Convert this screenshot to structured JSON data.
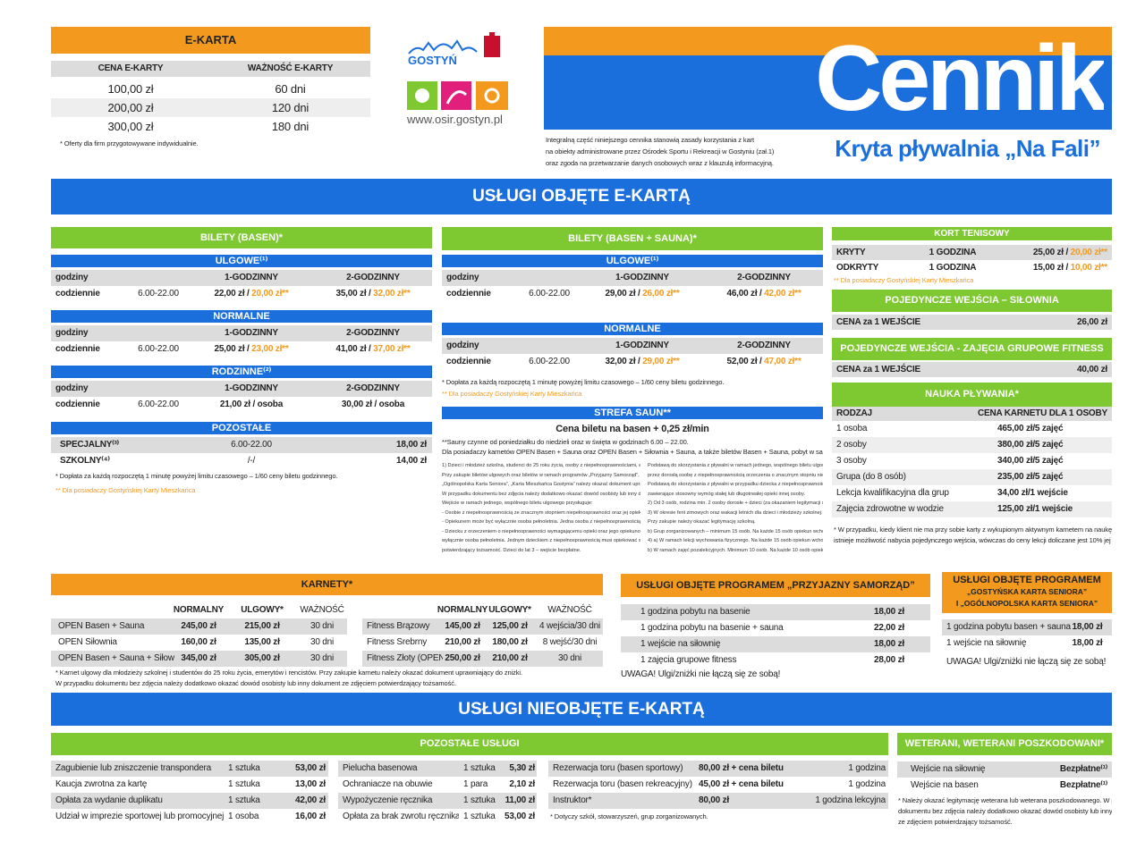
{
  "ekarta": {
    "title": "E-KARTA",
    "header": [
      "CENA E-KARTY",
      "WAŻNOŚĆ E-KARTY"
    ],
    "rows": [
      [
        "100,00 zł",
        "60 dni"
      ],
      [
        "200,00 zł",
        "120 dni"
      ],
      [
        "300,00 zł",
        "180 dni"
      ]
    ],
    "note": "* Oferty dla firm przygotowywane indywidualnie."
  },
  "logo": {
    "name": "GOSTYŃ",
    "url": "www.osir.gostyn.pl"
  },
  "header": {
    "title": "Cennik",
    "subtitle": "Kryta pływalnia „Na Fali”",
    "intro": [
      "Integralną część niniejszego cennika stanowią zasady korzystania z kart",
      "na obiekty administrowane przez Ośrodek Sportu i Rekreacji w Gostyniu (zał.1)",
      "oraz zgoda na przetwarzanie danych osobowych wraz z klauzulą informacyjną."
    ]
  },
  "section1": "USŁUGI OBJĘTE E-KARTĄ",
  "basen": {
    "title": "BILETY (BASEN)*",
    "groups": [
      {
        "title": "ULGOWE⁽¹⁾",
        "rows": [
          [
            "godziny",
            null,
            "1-GODZINNY",
            "2-GODZINNY"
          ],
          [
            "codziennie",
            "6.00-22.00",
            [
              "22,00 zł / ",
              "20,00 zł**"
            ],
            [
              "35,00 zł / ",
              "32,00 zł**"
            ]
          ]
        ]
      },
      {
        "title": "NORMALNE",
        "rows": [
          [
            "godziny",
            null,
            "1-GODZINNY",
            "2-GODZINNY"
          ],
          [
            "codziennie",
            "6.00-22.00",
            [
              "25,00 zł / ",
              "23,00 zł**"
            ],
            [
              "41,00 zł / ",
              "37,00 zł**"
            ]
          ]
        ]
      },
      {
        "title": "RODZINNE⁽²⁾",
        "rows": [
          [
            "godziny",
            null,
            "1-GODZINNY",
            "2-GODZINNY"
          ],
          [
            "codziennie",
            "6.00-22.00",
            "21,00 zł / osoba",
            "30,00 zł / osoba"
          ]
        ]
      },
      {
        "title": "POZOSTAŁE",
        "rows": [
          [
            "SPECJALNY⁽³⁾",
            null,
            "6.00-22.00",
            "18,00 zł"
          ],
          [
            "SZKOLNY⁽⁴⁾",
            null,
            "/-/",
            "14,00 zł"
          ]
        ]
      }
    ],
    "notes": [
      "* Dopłata za każdą rozpoczętą 1 minutę powyżej limitu czasowego – 1/60 ceny biletu godzinnego.",
      "** Dla posiadaczy Gostyńskiej Karty Mieszkańca"
    ]
  },
  "sauna": {
    "title": "BILETY (BASEN + SAUNA)*",
    "groups": [
      {
        "title": "ULGOWE⁽¹⁾",
        "rows": [
          [
            "godziny",
            null,
            "1-GODZINNY",
            "2-GODZINNY"
          ],
          [
            "codziennie",
            "6.00-22.00",
            [
              "29,00 zł / ",
              "26,00 zł**"
            ],
            [
              "46,00 zł / ",
              "42,00 zł**"
            ]
          ]
        ]
      },
      {
        "title": "NORMALNE",
        "rows": [
          [
            "godziny",
            null,
            "1-GODZINNY",
            "2-GODZINNY"
          ],
          [
            "codziennie",
            "6.00-22.00",
            [
              "32,00 zł / ",
              "29,00 zł**"
            ],
            [
              "52,00 zł / ",
              "47,00 zł**"
            ]
          ]
        ]
      }
    ],
    "notes": [
      "* Dopłata za każdą rozpoczętą 1 minutę powyżej limitu czasowego – 1/60 ceny biletu godzinnego.",
      "** Dla posiadaczy Gostyńskiej Karty Mieszkańca"
    ]
  },
  "strefa": {
    "title": "STREFA SAUN**",
    "price": "Cena biletu na basen + 0,25 zł/min",
    "notes": [
      "**Sauny czynne od poniedziałku do niedzieli oraz w święta w godzinach 6.00 – 22.00.",
      "Dla posiadaczy karnetów OPEN Basen + Sauna oraz OPEN Basen + Siłownia + Sauna, a także biletów Basen + Sauna, pobyt w saunach w cenie karnetu/biletu."
    ],
    "fine_left": [
      "1) Dzieci i młodzież szkolna, studenci do 25 roku życia, osoby z niepełnosprawnościami, emeryci i renciści.",
      "Przy zakupie biletów ulgowych oraz biletów w ramach programów „Przyjazny Samorząd”, „Gostyńska Karta Seniora”,",
      "„Ogólnopolska Karta Seniora”, „Karta Mieszkańca Gostynia” należy okazać dokument uprawniający do zniżki.",
      "W przypadku dokumentu bez zdjęcia należy dodatkowo okazać dowód osobisty lub inny dokument.",
      "Wejście w ramach jednego, wspólnego biletu ulgowego przysługuje:",
      "- Osobie z niepełnosprawnością ze znacznym stopniem niepełnosprawności oraz jej opiekunowi.",
      "- Opiekunem może być wyłącznie osoba pełnoletnia. Jedna osoba z niepełnosprawnością i jeden opiekun.",
      "- Dziecku z orzeczeniem o niepełnosprawności wymagającemu opieki oraz jego opiekunowi.",
      "wyłącznie osoba pełnoletnia. Jednym dzieckiem z niepełnosprawnością musi opiekować się jeden opiekun.",
      "potwierdzający tożsamość. Dzieci do lat 3 – wejście bezpłatne."
    ],
    "fine_right": [
      "Podstawą do skorzystania z pływalni w ramach jednego, wspólnego biletu ulgowego jest okazanie",
      "przez dorosłą osobę z niepełnosprawnością orzeczenia o znacznym stopniu niepełnosprawności.",
      "Podstawą do skorzystania z pływalni w przypadku dziecka z niepełnosprawnością jest orzeczenie",
      "zawierające stosowny wymóg stałej lub długotrwałej opieki innej osoby.",
      "2) Od 3 osób, rodzina min. 2 osoby dorosłe + dzieci (za okazaniem legitymacji szkolnej).",
      "3) W okresie ferii zimowych oraz wakacji letnich dla dzieci i młodzieży szkolnej.",
      "Przy zakupie należy okazać legitymację szkolną.",
      "b) Grup zorganizowanych – minimum 15 osób. Na każde 15 osób opiekun wchodzi gratis.",
      "4) a) W ramach lekcji wychowania fizycznego. Na każde 15 osób opiekun wchodzi gratis.",
      "b) W ramach zajęć pozalekcyjnych. Minimum 10 osób. Na każde 10 osób opiekun wchodzi gratis."
    ]
  },
  "kort": {
    "title": "KORT TENISOWY",
    "rows": [
      [
        "KRYTY",
        "1 GODZINA",
        [
          "25,00 zł / ",
          "20,00 zł**"
        ]
      ],
      [
        "ODKRYTY",
        "1 GODZINA",
        [
          "15,00 zł / ",
          "10,00 zł**"
        ]
      ]
    ],
    "note": "** Dla posiadaczy Gostyńskiej Karty Mieszkańca"
  },
  "silownia": {
    "title": "POJEDYNCZE WEJŚCIA – SIŁOWNIA",
    "rows": [
      [
        "CENA za 1 WEJŚCIE",
        "26,00 zł"
      ]
    ]
  },
  "fitness": {
    "title": "POJEDYNCZE WEJŚCIA - ZAJĘCIA GRUPOWE FITNESS",
    "rows": [
      [
        "CENA za 1 WEJŚCIE",
        "40,00 zł"
      ]
    ]
  },
  "nauka": {
    "title": "NAUKA PŁYWANIA*",
    "header": [
      "RODZAJ",
      "CENA KARNETU DLA 1 OSOBY"
    ],
    "rows": [
      [
        "1 osoba",
        "465,00 zł/5 zajęć"
      ],
      [
        "2 osoby",
        "380,00 zł/5 zajęć"
      ],
      [
        "3 osoby",
        "340,00 zł/5 zajęć"
      ],
      [
        "Grupa (do 8 osób)",
        "235,00 zł/5 zajęć"
      ],
      [
        "Lekcja kwalifikacyjna dla grup",
        "34,00 zł/1 wejście"
      ],
      [
        "Zajęcia zdrowotne w wodzie",
        "125,00 zł/1 wejście"
      ]
    ],
    "notes": [
      "* W przypadku, kiedy klient nie ma przy sobie karty z wykupionym aktywnym karnetem na naukę pływania,",
      "istnieje możliwość nabycia pojedynczego wejścia, wówczas do ceny lekcji doliczane jest 10% jej wartości."
    ]
  },
  "karnety": {
    "title": "KARNETY*",
    "left": [
      [
        null,
        "NORMALNY",
        "ULGOWY*",
        "WAŻNOŚĆ"
      ],
      [
        "OPEN Basen + Sauna",
        "245,00 zł",
        "215,00 zł",
        "30 dni"
      ],
      [
        "OPEN Siłownia",
        "160,00 zł",
        "135,00 zł",
        "30 dni"
      ],
      [
        "OPEN Basen + Sauna + Siłownia",
        "345,00 zł",
        "305,00 zł",
        "30 dni"
      ]
    ],
    "right": [
      [
        null,
        "NORMALNY",
        "ULGOWY*",
        "WAŻNOŚĆ"
      ],
      [
        "Fitness Brązowy",
        "145,00 zł",
        "125,00 zł",
        "4 wejścia/30 dni"
      ],
      [
        "Fitness Srebrny",
        "210,00 zł",
        "180,00 zł",
        "8 wejść/30 dni"
      ],
      [
        "Fitness Złoty (OPEN)",
        "250,00 zł",
        "210,00 zł",
        "30 dni"
      ]
    ],
    "notes": [
      "* Karnet ulgowy dla młodzieży szkolnej i studentów do 25 roku życia, emerytów i rencistów. Przy zakupie karnetu należy okazać dokument uprawniający do zniżki.",
      "W przypadku dokumentu bez zdjęcia należy dodatkowo okazać dowód osobisty lub inny dokument ze zdjęciem potwierdzający tożsamość."
    ]
  },
  "samorzad": {
    "title": "USŁUGI OBJĘTE PROGRAMEM „PRZYJAZNY SAMORZĄD”",
    "rows": [
      [
        "1 godzina pobytu na basenie",
        "18,00 zł"
      ],
      [
        "1 godzina pobytu na basenie + sauna",
        "22,00 zł"
      ],
      [
        "1 wejście na siłownię",
        "18,00 zł"
      ],
      [
        "1 zajęcia grupowe fitness",
        "28,00 zł"
      ]
    ],
    "note": "UWAGA! Ulgi/zniżki nie łączą się ze sobą!"
  },
  "senior": {
    "title": [
      "USŁUGI OBJĘTE PROGRAMEM",
      "„GOSTYŃSKA KARTA SENIORA”",
      "I „OGÓLNOPOLSKA KARTA SENIORA”"
    ],
    "rows": [
      [
        "1 godzina pobytu basen + sauna",
        "18,00 zł"
      ],
      [
        "1 wejście na siłownię",
        "18,00 zł"
      ]
    ],
    "note": "UWAGA! Ulgi/zniżki nie łączą się ze sobą!"
  },
  "section2": "USŁUGI NIEOBJĘTE E-KARTĄ",
  "pozostale": {
    "title": "POZOSTAŁE USŁUGI",
    "t1": [
      [
        "Zagubienie lub zniszczenie transpondera",
        "1 sztuka",
        "53,00 zł"
      ],
      [
        "Kaucja zwrotna za kartę",
        "1 sztuka",
        "13,00 zł"
      ],
      [
        "Opłata za wydanie duplikatu",
        "1 sztuka",
        "42,00 zł"
      ],
      [
        "Udział w imprezie sportowej lub promocyjnej",
        "1 osoba",
        "16,00 zł"
      ]
    ],
    "t2": [
      [
        "Pielucha basenowa",
        "1 sztuka",
        "5,30 zł"
      ],
      [
        "Ochraniacze na obuwie",
        "1 para",
        "2,10 zł"
      ],
      [
        "Wypożyczenie ręcznika",
        "1 sztuka",
        "11,00 zł"
      ],
      [
        "Opłata za brak zwrotu ręcznika",
        "1 sztuka",
        "53,00 zł"
      ]
    ],
    "t3": [
      [
        "Rezerwacja toru (basen sportowy)",
        "80,00 zł + cena biletu",
        "1 godzina"
      ],
      [
        "Rezerwacja toru (basen rekreacyjny)",
        "45,00 zł + cena biletu",
        "1 godzina"
      ],
      [
        "Instruktor*",
        "80,00 zł",
        "1 godzina lekcyjna"
      ]
    ],
    "note": "* Dotyczy szkół, stowarzyszeń, grup zorganizowanych."
  },
  "weterani": {
    "title": "WETERANI, WETERANI POSZKODOWANI*",
    "rows": [
      [
        "Wejście na siłownię",
        "Bezpłatne⁽¹⁾"
      ],
      [
        "Wejście na basen",
        "Bezpłatne⁽¹⁾"
      ]
    ],
    "notes": [
      "* Należy okazać legitymację weterana lub weterana poszkodowanego. W przypadku",
      "dokumentu bez zdjęcia należy dodatkowo okazać dowód osobisty lub inny dokument",
      "ze zdjęciem potwierdzający tożsamość."
    ]
  }
}
